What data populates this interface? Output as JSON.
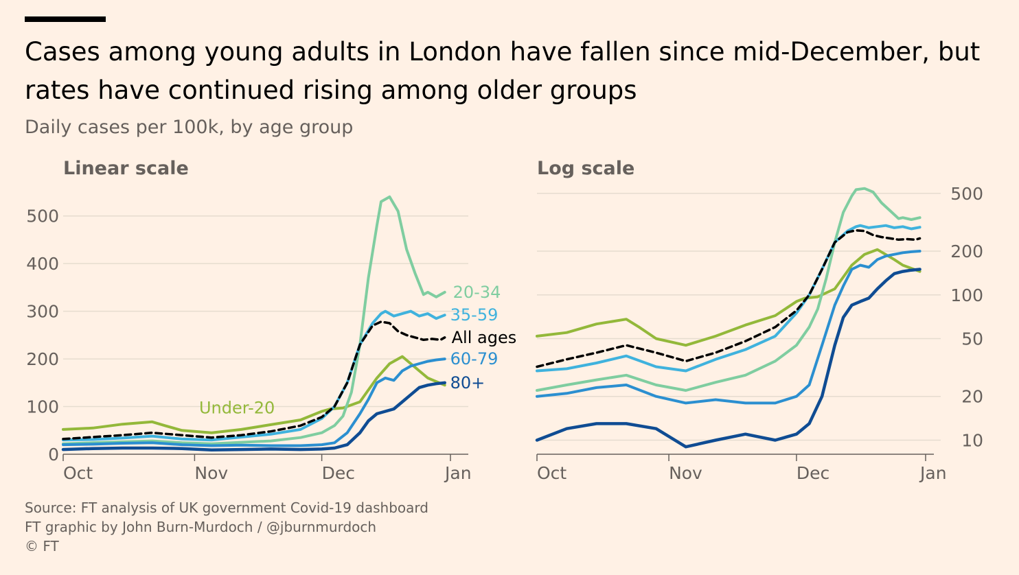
{
  "title": "Cases among young adults in London have fallen since mid-December, but rates have continued rising among older groups",
  "subtitle": "Daily cases per 100k, by age group",
  "footer": {
    "source": "Source: FT analysis of UK government Covid-19 dashboard",
    "credit": "FT graphic by John Burn-Murdoch / @jburnmurdoch",
    "copyright": "© FT"
  },
  "colors": {
    "background": "#fff1e5",
    "20-34": "#7fcda0",
    "35-59": "#3fb2dd",
    "60-79": "#2b8fd0",
    "80+": "#0f4c93",
    "Under-20": "#93b83a",
    "All ages": "#000000",
    "grid": "#e6dccf"
  },
  "chart_data": [
    {
      "type": "line",
      "title": "Linear scale",
      "x_ticks": [
        "Oct",
        "Nov",
        "Dec",
        "Jan"
      ],
      "x_tick_days": [
        0,
        31,
        61,
        92
      ],
      "y_ticks": [
        0,
        100,
        200,
        300,
        400,
        500
      ],
      "ylim": [
        0,
        550
      ],
      "xlim_days": [
        0,
        92
      ],
      "grid": "horizontal",
      "series": [
        {
          "name": "Under-20",
          "label": "Under-20",
          "x": [
            0,
            7,
            14,
            21,
            24,
            28,
            35,
            42,
            49,
            56,
            61,
            63,
            66,
            70,
            74,
            77,
            80,
            84,
            86,
            90
          ],
          "y": [
            52,
            55,
            63,
            68,
            60,
            50,
            45,
            52,
            62,
            72,
            90,
            95,
            97,
            110,
            160,
            190,
            205,
            175,
            160,
            145
          ]
        },
        {
          "name": "20-34",
          "label": "20-34",
          "x": [
            0,
            7,
            14,
            21,
            28,
            35,
            42,
            49,
            56,
            61,
            64,
            66,
            68,
            70,
            72,
            74,
            75,
            77,
            79,
            81,
            83,
            85,
            86,
            88,
            90
          ],
          "y": [
            22,
            24,
            26,
            28,
            24,
            22,
            25,
            28,
            35,
            45,
            60,
            80,
            130,
            230,
            370,
            480,
            530,
            540,
            510,
            430,
            380,
            335,
            340,
            330,
            340
          ]
        },
        {
          "name": "35-59",
          "label": "35-59",
          "x": [
            0,
            7,
            14,
            21,
            28,
            35,
            42,
            49,
            56,
            61,
            64,
            67,
            70,
            73,
            75,
            76,
            78,
            80,
            82,
            84,
            86,
            88,
            90
          ],
          "y": [
            30,
            31,
            34,
            38,
            32,
            30,
            36,
            42,
            52,
            75,
            100,
            150,
            230,
            275,
            295,
            300,
            290,
            295,
            300,
            290,
            295,
            285,
            292
          ]
        },
        {
          "name": "All ages",
          "label": "All ages",
          "x": [
            0,
            7,
            14,
            21,
            28,
            35,
            42,
            49,
            56,
            61,
            64,
            67,
            70,
            73,
            75,
            77,
            79,
            81,
            83,
            85,
            87,
            89,
            90
          ],
          "y": [
            32,
            36,
            40,
            45,
            40,
            35,
            40,
            48,
            60,
            78,
            100,
            150,
            230,
            270,
            278,
            275,
            258,
            250,
            245,
            240,
            242,
            240,
            245
          ]
        },
        {
          "name": "60-79",
          "label": "60-79",
          "x": [
            0,
            7,
            14,
            21,
            28,
            35,
            42,
            49,
            56,
            61,
            64,
            67,
            70,
            72,
            74,
            76,
            78,
            80,
            82,
            84,
            86,
            88,
            90
          ],
          "y": [
            20,
            21,
            23,
            24,
            20,
            18,
            19,
            18,
            18,
            20,
            24,
            45,
            85,
            115,
            150,
            160,
            155,
            175,
            185,
            190,
            195,
            198,
            200
          ]
        },
        {
          "name": "80+",
          "label": "80+",
          "x": [
            0,
            7,
            14,
            21,
            28,
            35,
            42,
            49,
            56,
            61,
            64,
            67,
            70,
            72,
            74,
            76,
            78,
            80,
            82,
            84,
            86,
            88,
            90
          ],
          "y": [
            10,
            12,
            13,
            13,
            12,
            9,
            10,
            11,
            10,
            11,
            13,
            20,
            45,
            70,
            85,
            90,
            95,
            110,
            125,
            140,
            145,
            148,
            150
          ]
        }
      ]
    },
    {
      "type": "line",
      "title": "Log scale",
      "scale": "log",
      "x_ticks": [
        "Oct",
        "Nov",
        "Dec",
        "Jan"
      ],
      "x_tick_days": [
        0,
        31,
        61,
        92
      ],
      "y_ticks": [
        10,
        20,
        50,
        100,
        200,
        500
      ],
      "ylim": [
        8,
        600
      ],
      "xlim_days": [
        0,
        92
      ],
      "grid": "horizontal",
      "series": [
        {
          "name": "Under-20",
          "x": [
            0,
            7,
            14,
            21,
            24,
            28,
            35,
            42,
            49,
            56,
            61,
            63,
            66,
            70,
            74,
            77,
            80,
            84,
            86,
            90
          ],
          "y": [
            52,
            55,
            63,
            68,
            60,
            50,
            45,
            52,
            62,
            72,
            90,
            95,
            97,
            110,
            160,
            190,
            205,
            175,
            160,
            145
          ]
        },
        {
          "name": "20-34",
          "x": [
            0,
            7,
            14,
            21,
            28,
            35,
            42,
            49,
            56,
            61,
            64,
            66,
            68,
            70,
            72,
            74,
            75,
            77,
            79,
            81,
            83,
            85,
            86,
            88,
            90
          ],
          "y": [
            22,
            24,
            26,
            28,
            24,
            22,
            25,
            28,
            35,
            45,
            60,
            80,
            130,
            230,
            370,
            480,
            530,
            540,
            510,
            430,
            380,
            335,
            340,
            330,
            340
          ]
        },
        {
          "name": "35-59",
          "x": [
            0,
            7,
            14,
            21,
            28,
            35,
            42,
            49,
            56,
            61,
            64,
            67,
            70,
            73,
            75,
            76,
            78,
            80,
            82,
            84,
            86,
            88,
            90
          ],
          "y": [
            30,
            31,
            34,
            38,
            32,
            30,
            36,
            42,
            52,
            75,
            100,
            150,
            230,
            275,
            295,
            300,
            290,
            295,
            300,
            290,
            295,
            285,
            292
          ]
        },
        {
          "name": "All ages",
          "x": [
            0,
            7,
            14,
            21,
            28,
            35,
            42,
            49,
            56,
            61,
            64,
            67,
            70,
            73,
            75,
            77,
            79,
            81,
            83,
            85,
            87,
            89,
            90
          ],
          "y": [
            32,
            36,
            40,
            45,
            40,
            35,
            40,
            48,
            60,
            78,
            100,
            150,
            230,
            270,
            278,
            275,
            258,
            250,
            245,
            240,
            242,
            240,
            245
          ]
        },
        {
          "name": "60-79",
          "x": [
            0,
            7,
            14,
            21,
            28,
            35,
            42,
            49,
            56,
            61,
            64,
            67,
            70,
            72,
            74,
            76,
            78,
            80,
            82,
            84,
            86,
            88,
            90
          ],
          "y": [
            20,
            21,
            23,
            24,
            20,
            18,
            19,
            18,
            18,
            20,
            24,
            45,
            85,
            115,
            150,
            160,
            155,
            175,
            185,
            190,
            195,
            198,
            200
          ]
        },
        {
          "name": "80+",
          "x": [
            0,
            7,
            14,
            21,
            28,
            35,
            42,
            49,
            56,
            61,
            64,
            67,
            70,
            72,
            74,
            76,
            78,
            80,
            82,
            84,
            86,
            88,
            90
          ],
          "y": [
            10,
            12,
            13,
            13,
            12,
            9,
            10,
            11,
            10,
            11,
            13,
            20,
            45,
            70,
            85,
            90,
            95,
            110,
            125,
            140,
            145,
            148,
            150
          ]
        }
      ]
    }
  ]
}
